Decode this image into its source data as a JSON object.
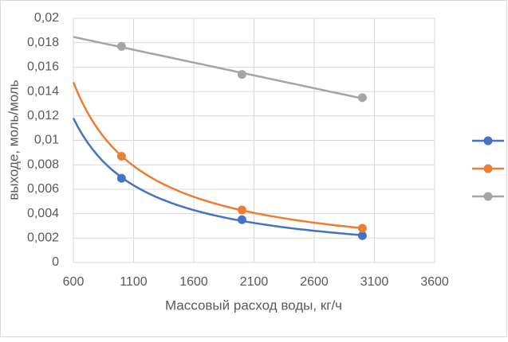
{
  "chart_data": {
    "type": "scatter",
    "x_label": "Массовый расход воды, кг/ч",
    "y_label": "выходе, моль/моль",
    "xlim": [
      600,
      3600
    ],
    "xticks": [
      600,
      1100,
      1600,
      2100,
      2600,
      3100,
      3600
    ],
    "ylim": [
      0,
      0.02
    ],
    "yticks": [
      0,
      {
        "value": 0.002,
        "label": "0,002"
      },
      {
        "value": 0.004,
        "label": "0,004"
      },
      {
        "value": 0.006,
        "label": "0,006"
      },
      {
        "value": 0.008,
        "label": "0,008"
      },
      {
        "value": 0.01,
        "label": "0,01"
      },
      {
        "value": 0.012,
        "label": "0,012"
      },
      {
        "value": 0.014,
        "label": "0,014"
      },
      {
        "value": 0.016,
        "label": "0,016"
      },
      {
        "value": 0.018,
        "label": "0,018"
      },
      {
        "value": 0.02,
        "label": "0,02"
      }
    ],
    "grid": true,
    "legend": "right",
    "series": [
      {
        "color": "#4472c4",
        "trendline": "power",
        "x": [
          1000,
          2000,
          3000
        ],
        "values": [
          0.0069,
          0.0035,
          0.0022
        ]
      },
      {
        "color": "#ed7d31",
        "trendline": "power",
        "x": [
          1000,
          2000,
          3000
        ],
        "values": [
          0.0087,
          0.0043,
          0.0028
        ]
      },
      {
        "color": "#a5a5a5",
        "trendline": "linear",
        "x": [
          1000,
          2000,
          3000
        ],
        "values": [
          0.0177,
          0.0154,
          0.0135
        ]
      }
    ]
  }
}
